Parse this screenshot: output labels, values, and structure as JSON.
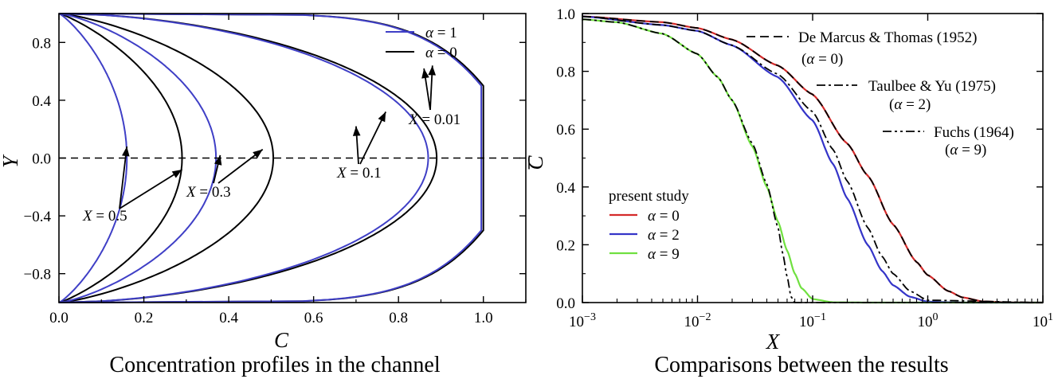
{
  "chart_data": [
    {
      "type": "line",
      "title": "Concentration profiles in the channel",
      "xlabel": "C",
      "ylabel": "Y",
      "xlim": [
        0,
        1.1
      ],
      "ylim": [
        -1,
        1
      ],
      "x_ticks": [
        "0.0",
        "0.2",
        "0.4",
        "0.6",
        "0.8",
        "1.0"
      ],
      "y_ticks": [
        "−0.8",
        "−0.4",
        "0.0",
        "0.4",
        "0.8"
      ],
      "legend": {
        "position": "top-right",
        "entries": [
          {
            "label": "α = 1",
            "color": "#3f3fc6"
          },
          {
            "label": "α = 0",
            "color": "#000000"
          }
        ]
      },
      "reference_line": {
        "y": 0,
        "style": "dashed"
      },
      "series": [
        {
          "X": 0.5,
          "alpha": 0,
          "color": "#000000",
          "centerline_C": 0.29
        },
        {
          "X": 0.5,
          "alpha": 1,
          "color": "#3f3fc6",
          "centerline_C": 0.16
        },
        {
          "X": 0.3,
          "alpha": 0,
          "color": "#000000",
          "centerline_C": 0.505
        },
        {
          "X": 0.3,
          "alpha": 1,
          "color": "#3f3fc6",
          "centerline_C": 0.37
        },
        {
          "X": 0.1,
          "alpha": 0,
          "color": "#000000",
          "centerline_C": 0.89
        },
        {
          "X": 0.1,
          "alpha": 1,
          "color": "#3f3fc6",
          "centerline_C": 0.87
        },
        {
          "X": 0.01,
          "alpha": 0,
          "color": "#000000",
          "centerline_C": 1.0
        },
        {
          "X": 0.01,
          "alpha": 1,
          "color": "#3f3fc6",
          "centerline_C": 0.995
        }
      ],
      "annotations": [
        {
          "text": "X = 0.5",
          "target_C": [
            0.16,
            0.29
          ],
          "target_Y": [
            0.08,
            -0.08
          ]
        },
        {
          "text": "X = 0.3",
          "target_C": [
            0.38,
            0.48
          ],
          "target_Y": [
            0.02,
            0.06
          ]
        },
        {
          "text": "X = 0.1",
          "target_C": [
            0.7,
            0.77
          ],
          "target_Y": [
            0.22,
            0.32
          ]
        },
        {
          "text": "X = 0.01",
          "target_C": [
            0.86,
            0.88
          ],
          "target_Y": [
            0.62,
            0.64
          ]
        }
      ]
    },
    {
      "type": "line",
      "title": "Comparisons between the results",
      "xlabel": "X",
      "ylabel": "C̄",
      "xscale": "log",
      "xlim": [
        0.001,
        10
      ],
      "ylim": [
        0,
        1
      ],
      "x_ticks": [
        {
          "base": "10",
          "exp": "−3",
          "value": 0.001
        },
        {
          "base": "10",
          "exp": "−2",
          "value": 0.01
        },
        {
          "base": "10",
          "exp": "−1",
          "value": 0.1
        },
        {
          "base": "10",
          "exp": "0",
          "value": 1
        },
        {
          "base": "10",
          "exp": "1",
          "value": 10
        }
      ],
      "y_ticks": [
        "0.0",
        "0.2",
        "0.4",
        "0.6",
        "0.8",
        "1.0"
      ],
      "legend": {
        "position": "center-left",
        "title": "present study",
        "entries": [
          {
            "label": "α = 0",
            "color": "#d42a2a"
          },
          {
            "label": "α = 2",
            "color": "#3434c8"
          },
          {
            "label": "α = 9",
            "color": "#70e040"
          }
        ]
      },
      "reference_legend": [
        {
          "label": "De Marcus & Thomas (1952)",
          "sub": "(α = 0)",
          "style": "dashed"
        },
        {
          "label": "Taulbee & Yu (1975)",
          "sub": "(α = 2)",
          "style": "dashdot"
        },
        {
          "label": "Fuchs (1964)",
          "sub": "(α = 9)",
          "style": "dashdotdot"
        }
      ],
      "series": [
        {
          "name": "α = 0",
          "color": "#d42a2a",
          "style": "solid",
          "x": [
            0.001,
            0.005,
            0.01,
            0.02,
            0.05,
            0.1,
            0.2,
            0.3,
            0.5,
            0.8,
            1,
            1.5,
            2,
            3,
            5,
            10
          ],
          "y": [
            0.99,
            0.97,
            0.95,
            0.91,
            0.82,
            0.72,
            0.55,
            0.44,
            0.27,
            0.14,
            0.095,
            0.04,
            0.018,
            0.004,
            0.0003,
            0
          ]
        },
        {
          "name": "α = 2",
          "color": "#3434c8",
          "style": "solid",
          "x": [
            0.001,
            0.005,
            0.01,
            0.02,
            0.05,
            0.1,
            0.15,
            0.2,
            0.3,
            0.4,
            0.5,
            0.7,
            1,
            2,
            10
          ],
          "y": [
            0.99,
            0.96,
            0.94,
            0.89,
            0.78,
            0.63,
            0.48,
            0.36,
            0.2,
            0.11,
            0.06,
            0.02,
            0.003,
            0,
            0
          ]
        },
        {
          "name": "α = 9",
          "color": "#70e040",
          "style": "solid",
          "x": [
            0.001,
            0.002,
            0.005,
            0.01,
            0.015,
            0.02,
            0.03,
            0.04,
            0.05,
            0.06,
            0.07,
            0.08,
            0.1,
            0.15,
            0.3,
            10
          ],
          "y": [
            0.98,
            0.97,
            0.93,
            0.86,
            0.78,
            0.7,
            0.54,
            0.4,
            0.28,
            0.18,
            0.1,
            0.05,
            0.012,
            0.001,
            0,
            0
          ]
        },
        {
          "name": "De Marcus & Thomas (1952)",
          "color": "#000000",
          "style": "dashed",
          "x": [
            0.001,
            0.005,
            0.01,
            0.02,
            0.05,
            0.1,
            0.2,
            0.3,
            0.5,
            0.8,
            1,
            1.5,
            2,
            3,
            5,
            10
          ],
          "y": [
            0.99,
            0.97,
            0.95,
            0.91,
            0.82,
            0.72,
            0.55,
            0.44,
            0.27,
            0.14,
            0.095,
            0.04,
            0.018,
            0.004,
            0.0003,
            0
          ]
        },
        {
          "name": "Taulbee & Yu (1975)",
          "color": "#000000",
          "style": "dashdot",
          "x": [
            0.001,
            0.005,
            0.01,
            0.02,
            0.05,
            0.1,
            0.15,
            0.2,
            0.3,
            0.4,
            0.5,
            0.7,
            1,
            10
          ],
          "y": [
            0.99,
            0.96,
            0.94,
            0.89,
            0.79,
            0.66,
            0.53,
            0.42,
            0.26,
            0.16,
            0.1,
            0.04,
            0.008,
            0
          ]
        },
        {
          "name": "Fuchs (1964)",
          "color": "#000000",
          "style": "dashdotdot",
          "x": [
            0.001,
            0.002,
            0.005,
            0.01,
            0.015,
            0.02,
            0.03,
            0.04,
            0.05,
            0.055,
            0.06,
            0.065,
            0.07,
            10
          ],
          "y": [
            0.98,
            0.97,
            0.93,
            0.86,
            0.78,
            0.7,
            0.55,
            0.41,
            0.26,
            0.17,
            0.09,
            0.02,
            0,
            0
          ]
        }
      ]
    }
  ]
}
